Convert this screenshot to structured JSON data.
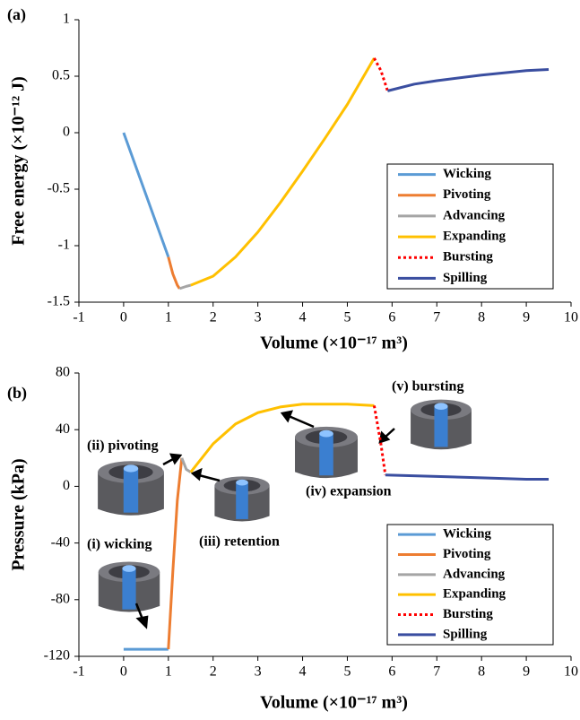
{
  "chart_data": [
    {
      "type": "line",
      "panel_label": "(a)",
      "x_label": "Volume (×10⁻¹⁷ m³)",
      "y_label": "Free energy (×10⁻¹² J)",
      "xlim": [
        -1,
        10
      ],
      "xticks": [
        -1,
        0,
        1,
        2,
        3,
        4,
        5,
        6,
        7,
        8,
        9,
        10
      ],
      "ylim": [
        -1.5,
        1
      ],
      "yticks": [
        -1.5,
        -1,
        -0.5,
        0,
        0.5,
        1
      ],
      "legend": "lower right",
      "series": [
        {
          "name": "Wicking",
          "color": "#5b9bd5",
          "style": "solid",
          "x": [
            0,
            0.5,
            1
          ],
          "values": [
            0,
            -0.55,
            -1.1
          ]
        },
        {
          "name": "Pivoting",
          "color": "#ed7d31",
          "style": "solid",
          "x": [
            1,
            1.1,
            1.2,
            1.25
          ],
          "values": [
            -1.1,
            -1.25,
            -1.35,
            -1.38
          ]
        },
        {
          "name": "Advancing",
          "color": "#a5a5a5",
          "style": "solid",
          "x": [
            1.25,
            1.4,
            1.5
          ],
          "values": [
            -1.38,
            -1.36,
            -1.35
          ]
        },
        {
          "name": "Expanding",
          "color": "#ffc000",
          "style": "solid",
          "x": [
            1.5,
            2,
            2.5,
            3,
            3.5,
            4,
            4.5,
            5,
            5.6
          ],
          "values": [
            -1.35,
            -1.27,
            -1.1,
            -0.88,
            -0.62,
            -0.34,
            -0.05,
            0.25,
            0.66
          ]
        },
        {
          "name": "Bursting",
          "color": "#ff0000",
          "style": "dotted",
          "x": [
            5.6,
            5.75,
            5.9
          ],
          "values": [
            0.66,
            0.55,
            0.37
          ]
        },
        {
          "name": "Spilling",
          "color": "#3a4ea0",
          "style": "solid",
          "x": [
            5.9,
            6.5,
            7,
            8,
            9,
            9.5
          ],
          "values": [
            0.37,
            0.43,
            0.46,
            0.51,
            0.55,
            0.56
          ]
        }
      ]
    },
    {
      "type": "line",
      "panel_label": "(b)",
      "x_label": "Volume (×10⁻¹⁷ m³)",
      "y_label": "Pressure (kPa)",
      "xlim": [
        -1,
        10
      ],
      "xticks": [
        -1,
        0,
        1,
        2,
        3,
        4,
        5,
        6,
        7,
        8,
        9,
        10
      ],
      "ylim": [
        -120,
        80
      ],
      "yticks": [
        -120,
        -80,
        -40,
        0,
        40,
        80
      ],
      "legend": "lower right",
      "annotations": [
        "(i) wicking",
        "(ii) pivoting",
        "(iii) retention",
        "(iv) expansion",
        "(v) bursting"
      ],
      "series": [
        {
          "name": "Wicking",
          "color": "#5b9bd5",
          "style": "solid",
          "x": [
            0,
            1
          ],
          "values": [
            -115,
            -115
          ]
        },
        {
          "name": "Pivoting",
          "color": "#ed7d31",
          "style": "solid",
          "x": [
            1,
            1.1,
            1.2,
            1.3
          ],
          "values": [
            -115,
            -60,
            -10,
            20
          ]
        },
        {
          "name": "Advancing",
          "color": "#a5a5a5",
          "style": "solid",
          "x": [
            1.3,
            1.4,
            1.5
          ],
          "values": [
            20,
            12,
            10
          ]
        },
        {
          "name": "Expanding",
          "color": "#ffc000",
          "style": "solid",
          "x": [
            1.5,
            2,
            2.5,
            3,
            3.5,
            4,
            5,
            5.6
          ],
          "values": [
            10,
            30,
            44,
            52,
            56,
            58,
            58,
            57
          ]
        },
        {
          "name": "Bursting",
          "color": "#ff0000",
          "style": "dotted",
          "x": [
            5.6,
            5.75,
            5.85
          ],
          "values": [
            57,
            30,
            8
          ]
        },
        {
          "name": "Spilling",
          "color": "#3a4ea0",
          "style": "solid",
          "x": [
            5.85,
            7,
            8,
            9,
            9.5
          ],
          "values": [
            8,
            7,
            6,
            5,
            5
          ]
        }
      ]
    }
  ]
}
